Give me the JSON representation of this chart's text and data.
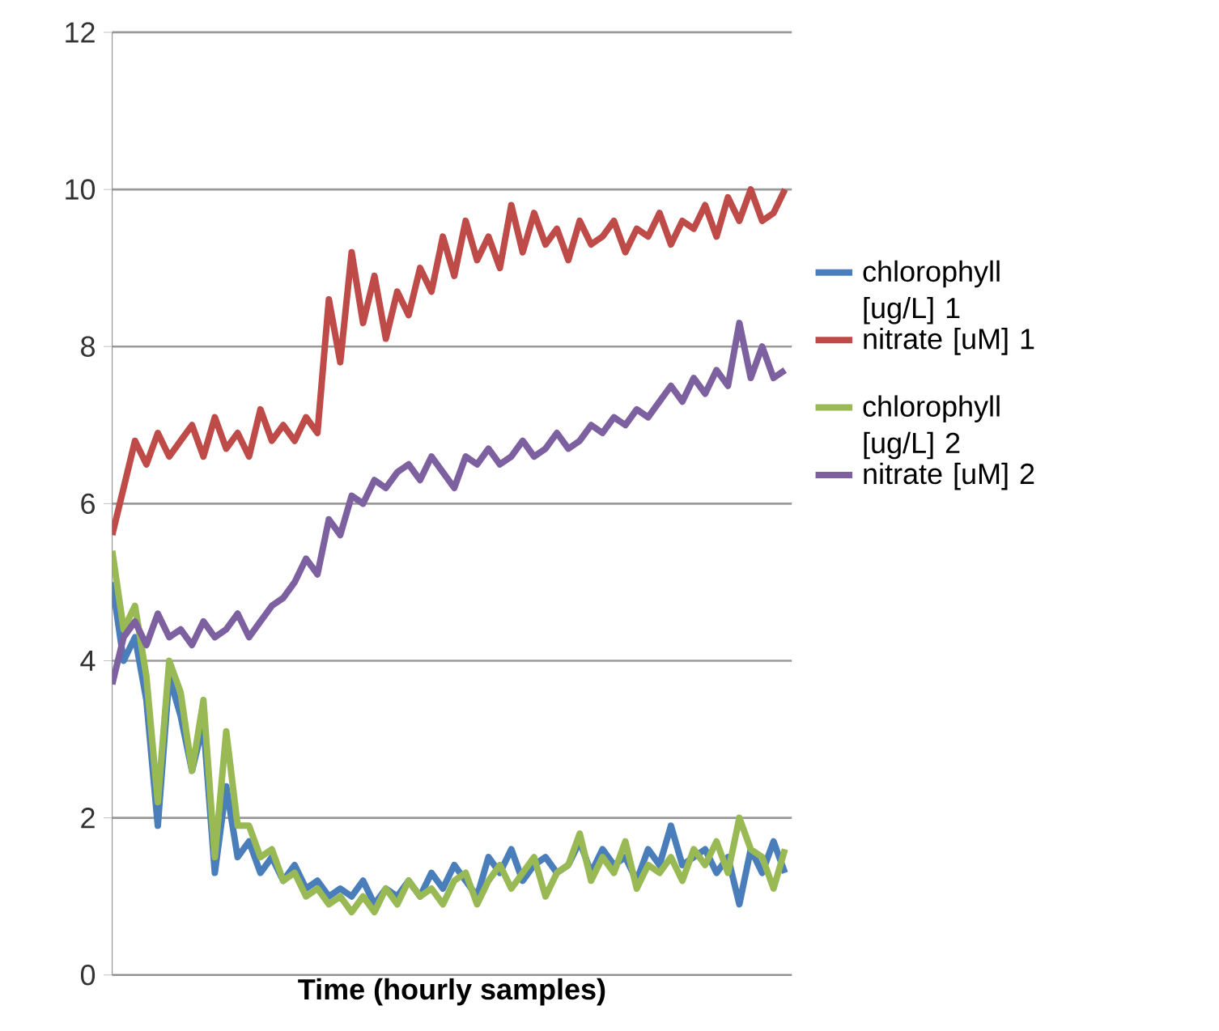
{
  "chart_data": {
    "type": "line",
    "xlabel": "Time (hourly samples)",
    "categories": [
      null,
      null,
      null,
      null,
      null,
      null,
      null,
      null,
      null,
      null,
      null,
      null,
      null,
      null,
      null,
      null,
      null,
      null,
      null,
      null,
      null,
      null,
      null,
      null,
      null,
      null,
      null,
      null,
      null,
      null,
      null,
      null,
      null,
      null,
      null,
      null,
      null,
      null,
      null,
      null,
      null,
      null,
      null,
      null,
      null,
      null,
      null,
      null,
      null,
      null,
      null,
      null,
      null,
      null,
      null,
      null,
      null,
      null,
      null,
      null
    ],
    "series": [
      {
        "name": "chlorophyll [ug/L] 1",
        "color": "#4a7ebb",
        "values": [
          5.0,
          4.0,
          4.3,
          3.5,
          1.9,
          3.8,
          3.3,
          2.6,
          3.2,
          1.3,
          2.4,
          1.5,
          1.7,
          1.3,
          1.5,
          1.2,
          1.4,
          1.1,
          1.2,
          1.0,
          1.1,
          1.0,
          1.2,
          0.9,
          1.1,
          1.0,
          1.2,
          1.0,
          1.3,
          1.1,
          1.4,
          1.2,
          1.0,
          1.5,
          1.3,
          1.6,
          1.2,
          1.4,
          1.5,
          1.3,
          1.4,
          1.7,
          1.3,
          1.6,
          1.4,
          1.5,
          1.2,
          1.6,
          1.4,
          1.9,
          1.4,
          1.5,
          1.6,
          1.3,
          1.5,
          0.9,
          1.6,
          1.3,
          1.7,
          1.3
        ]
      },
      {
        "name": "nitrate [uM] 1",
        "color": "#be4b48",
        "values": [
          5.6,
          6.2,
          6.8,
          6.5,
          6.9,
          6.6,
          6.8,
          7.0,
          6.6,
          7.1,
          6.7,
          6.9,
          6.6,
          7.2,
          6.8,
          7.0,
          6.8,
          7.1,
          6.9,
          8.6,
          7.8,
          9.2,
          8.3,
          8.9,
          8.1,
          8.7,
          8.4,
          9.0,
          8.7,
          9.4,
          8.9,
          9.6,
          9.1,
          9.4,
          9.0,
          9.8,
          9.2,
          9.7,
          9.3,
          9.5,
          9.1,
          9.6,
          9.3,
          9.4,
          9.6,
          9.2,
          9.5,
          9.4,
          9.7,
          9.3,
          9.6,
          9.5,
          9.8,
          9.4,
          9.9,
          9.6,
          10.0,
          9.6,
          9.7,
          10.0
        ]
      },
      {
        "name": "chlorophyll [ug/L] 2",
        "color": "#98b954",
        "values": [
          5.4,
          4.4,
          4.7,
          3.8,
          2.2,
          4.0,
          3.6,
          2.6,
          3.5,
          1.5,
          3.1,
          1.9,
          1.9,
          1.5,
          1.6,
          1.2,
          1.3,
          1.0,
          1.1,
          0.9,
          1.0,
          0.8,
          1.0,
          0.8,
          1.1,
          0.9,
          1.2,
          1.0,
          1.1,
          0.9,
          1.2,
          1.3,
          0.9,
          1.2,
          1.4,
          1.1,
          1.3,
          1.5,
          1.0,
          1.3,
          1.4,
          1.8,
          1.2,
          1.5,
          1.3,
          1.7,
          1.1,
          1.4,
          1.3,
          1.5,
          1.2,
          1.6,
          1.4,
          1.7,
          1.3,
          2.0,
          1.6,
          1.5,
          1.1,
          1.6
        ]
      },
      {
        "name": "nitrate [uM] 2",
        "color": "#7d60a0",
        "values": [
          3.7,
          4.3,
          4.5,
          4.2,
          4.6,
          4.3,
          4.4,
          4.2,
          4.5,
          4.3,
          4.4,
          4.6,
          4.3,
          4.5,
          4.7,
          4.8,
          5.0,
          5.3,
          5.1,
          5.8,
          5.6,
          6.1,
          6.0,
          6.3,
          6.2,
          6.4,
          6.5,
          6.3,
          6.6,
          6.4,
          6.2,
          6.6,
          6.5,
          6.7,
          6.5,
          6.6,
          6.8,
          6.6,
          6.7,
          6.9,
          6.7,
          6.8,
          7.0,
          6.9,
          7.1,
          7.0,
          7.2,
          7.1,
          7.3,
          7.5,
          7.3,
          7.6,
          7.4,
          7.7,
          7.5,
          8.3,
          7.6,
          8.0,
          7.6,
          7.7
        ]
      }
    ],
    "ylim": [
      0,
      12
    ],
    "yticks": [
      0,
      2,
      4,
      6,
      8,
      10,
      12
    ],
    "grid": "y",
    "legend": "right"
  }
}
